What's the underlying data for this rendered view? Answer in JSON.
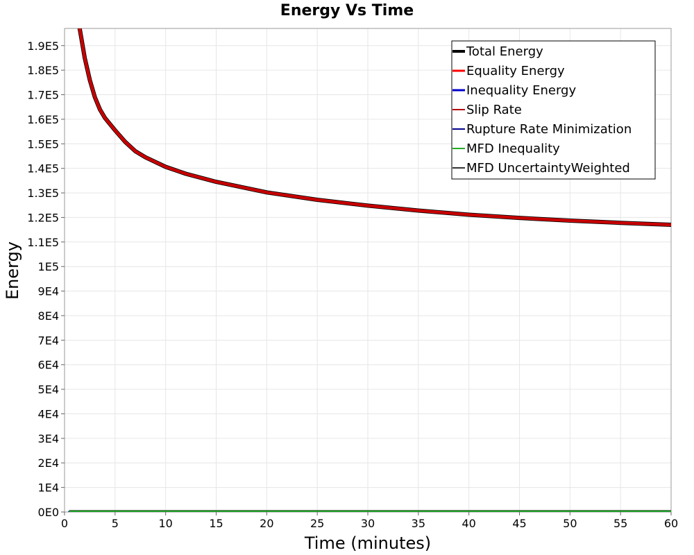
{
  "chart_data": {
    "type": "line",
    "title": "Energy Vs Time",
    "xlabel": "Time (minutes)",
    "ylabel": "Energy",
    "xlim": [
      0,
      60
    ],
    "ylim": [
      0,
      197000
    ],
    "x_ticks": [
      0,
      5,
      10,
      15,
      20,
      25,
      30,
      35,
      40,
      45,
      50,
      55,
      60
    ],
    "x_tick_labels": [
      "0",
      "5",
      "10",
      "15",
      "20",
      "25",
      "30",
      "35",
      "40",
      "45",
      "50",
      "55",
      "60"
    ],
    "y_ticks": [
      0,
      10000,
      20000,
      30000,
      40000,
      50000,
      60000,
      70000,
      80000,
      90000,
      100000,
      110000,
      120000,
      130000,
      140000,
      150000,
      160000,
      170000,
      180000,
      190000
    ],
    "y_tick_labels": [
      "0E0",
      "1E4",
      "2E4",
      "3E4",
      "4E4",
      "5E4",
      "6E4",
      "7E4",
      "8E4",
      "9E4",
      "1E5",
      "1.1E5",
      "1.2E5",
      "1.3E5",
      "1.4E5",
      "1.5E5",
      "1.6E5",
      "1.7E5",
      "1.8E5",
      "1.9E5"
    ],
    "grid": true,
    "legend_position": "top-right",
    "series": [
      {
        "name": "Total Energy",
        "color": "#000000",
        "x": [
          1.5,
          2,
          2.5,
          3,
          3.5,
          4,
          5,
          6,
          7,
          8,
          10,
          12,
          15,
          20,
          25,
          30,
          35,
          40,
          45,
          50,
          55,
          60
        ],
        "y": [
          197000,
          185000,
          176000,
          169000,
          164000,
          160500,
          155500,
          150800,
          147000,
          144500,
          140600,
          137800,
          134500,
          130200,
          127200,
          124800,
          122800,
          121100,
          119800,
          118700,
          117800,
          117000
        ]
      },
      {
        "name": "Equality Energy",
        "color": "#ff0000",
        "x": [
          1.5,
          2,
          2.5,
          3,
          3.5,
          4,
          5,
          6,
          7,
          8,
          10,
          12,
          15,
          20,
          25,
          30,
          35,
          40,
          45,
          50,
          55,
          60
        ],
        "y": [
          197000,
          185000,
          176000,
          169000,
          164000,
          160500,
          155500,
          150800,
          147000,
          144500,
          140600,
          137800,
          134500,
          130200,
          127200,
          124800,
          122800,
          121100,
          119800,
          118700,
          117800,
          117000
        ]
      },
      {
        "name": "Inequality Energy",
        "color": "#0000cc",
        "x": [
          0.5,
          60
        ],
        "y": [
          0,
          0
        ]
      },
      {
        "name": "Slip Rate",
        "color": "#b30000",
        "x": [
          1.5,
          2,
          2.5,
          3,
          3.5,
          4,
          5,
          6,
          7,
          8,
          10,
          12,
          15,
          20,
          25,
          30,
          35,
          40,
          45,
          50,
          55,
          60
        ],
        "y": [
          197000,
          185000,
          176000,
          169000,
          164000,
          160500,
          155500,
          150800,
          147000,
          144500,
          140600,
          137800,
          134500,
          130200,
          127200,
          124800,
          122800,
          121100,
          119800,
          118700,
          117800,
          117000
        ]
      },
      {
        "name": "Rupture Rate Minimization",
        "color": "#00008b",
        "x": [
          0.5,
          60
        ],
        "y": [
          0,
          0
        ]
      },
      {
        "name": "MFD Inequality",
        "color": "#22aa22",
        "x": [
          0.5,
          60
        ],
        "y": [
          300,
          300
        ]
      },
      {
        "name": "MFD UncertaintyWeighted",
        "color": "#333333",
        "x": [
          0.5,
          60
        ],
        "y": [
          500,
          500
        ]
      }
    ]
  }
}
